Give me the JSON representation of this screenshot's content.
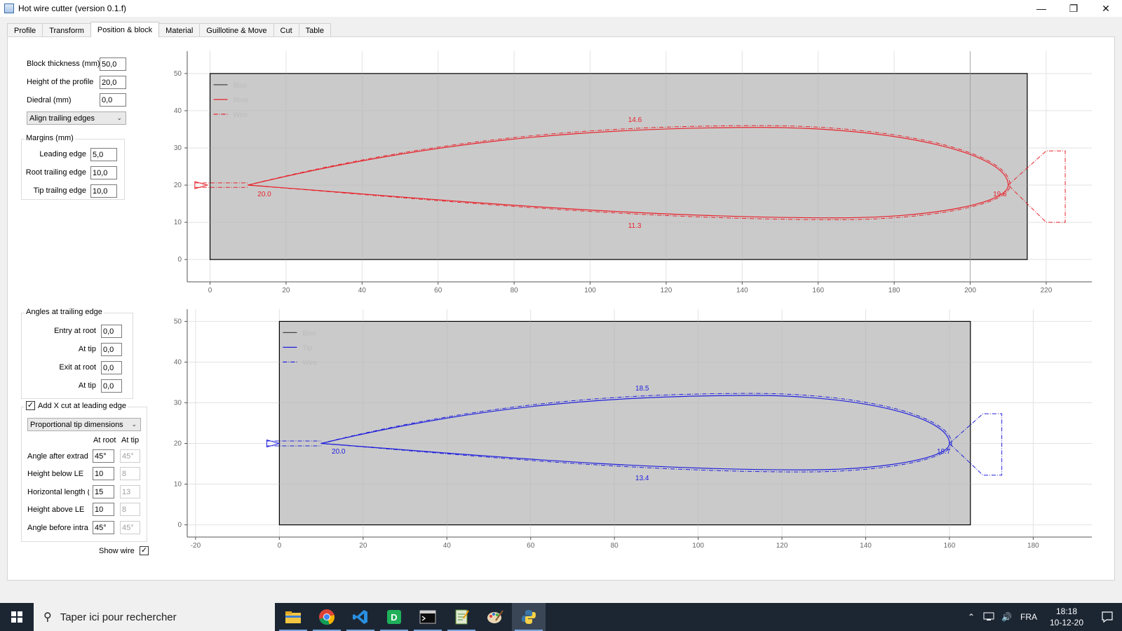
{
  "window": {
    "title": "Hot wire cutter (version 0.1.f)",
    "minimize": "—",
    "restore": "❐",
    "close": "✕"
  },
  "tabs": [
    "Profile",
    "Transform",
    "Position & block",
    "Material",
    "Guillotine & Move",
    "Cut",
    "Table"
  ],
  "active_tab": "Position & block",
  "block": {
    "thickness_label": "Block thickness (mm)",
    "thickness_value": "50,0",
    "height_label": "Height of the profile",
    "height_value": "20,0",
    "diedral_label": "Diedral (mm)",
    "diedral_value": "0,0",
    "align_option": "Align trailing edges"
  },
  "margins": {
    "title": "Margins (mm)",
    "leading_label": "Leading edge",
    "leading_value": "5,0",
    "root_te_label": "Root trailing edge",
    "root_te_value": "10,0",
    "tip_te_label": "Tip trailng edge",
    "tip_te_value": "10,0"
  },
  "angles": {
    "title": "Angles at trailing edge",
    "entry_root_label": "Entry at root",
    "entry_root_value": "0,0",
    "entry_tip_label": "At tip",
    "entry_tip_value": "0,0",
    "exit_root_label": "Exit at root",
    "exit_root_value": "0,0",
    "exit_tip_label": "At tip",
    "exit_tip_value": "0,0"
  },
  "xcut": {
    "checkbox_label": "Add X cut at leading edge",
    "checked": true,
    "mode_option": "Proportional tip dimensions",
    "col_root": "At root",
    "col_tip": "At tip",
    "rows": [
      {
        "label": "Angle after extrad",
        "root": "45°",
        "tip": "45°"
      },
      {
        "label": "Height below LE",
        "root": "10",
        "tip": "8"
      },
      {
        "label": "Horizontal length (",
        "root": "15",
        "tip": "13"
      },
      {
        "label": "Height above LE",
        "root": "10",
        "tip": "8"
      },
      {
        "label": "Angle before intra",
        "root": "45°",
        "tip": "45°"
      }
    ]
  },
  "show_wire_label": "Show wire",
  "show_wire_checked": true,
  "chart_data": [
    {
      "type": "line",
      "name": "root-chart",
      "xlim": [
        -6,
        232
      ],
      "ylim": [
        -6,
        56
      ],
      "xticks": [
        0,
        20,
        40,
        60,
        80,
        100,
        120,
        140,
        160,
        180,
        200,
        220
      ],
      "yticks": [
        0,
        10,
        20,
        30,
        40,
        50
      ],
      "grid": true,
      "legend_position": "top-left",
      "legend": [
        "Bloc",
        "Root",
        "Wire"
      ],
      "block": {
        "x0": 0,
        "x1": 215,
        "y0": 0,
        "y1": 50
      },
      "extra_vline_x": 200,
      "profile_color": "#e8232c",
      "profile": {
        "le_x": 10,
        "te_x": 210,
        "y_mid": 20,
        "upper_max": 35.5,
        "upper_max_x": 145,
        "lower_min": 11.2,
        "lower_min_x": 165
      },
      "annotations": [
        {
          "text": "14.6",
          "x": 110,
          "y": 37
        },
        {
          "text": "20.0",
          "x": 12.5,
          "y": 17
        },
        {
          "text": "11.3",
          "x": 110,
          "y": 8.5
        },
        {
          "text": "19.6",
          "x": 206,
          "y": 17
        }
      ],
      "lead_in": {
        "x0": -4,
        "x1": 10,
        "y": 20
      },
      "exit_wire": [
        [
          210,
          20
        ],
        [
          220,
          29.2
        ],
        [
          225,
          29.2
        ],
        [
          225,
          10
        ],
        [
          220,
          10
        ],
        [
          210,
          20
        ]
      ]
    },
    {
      "type": "line",
      "name": "tip-chart",
      "xlim": [
        -22,
        194
      ],
      "ylim": [
        -3,
        53
      ],
      "xticks": [
        -20,
        0,
        20,
        40,
        60,
        80,
        100,
        120,
        140,
        160,
        180
      ],
      "yticks": [
        0,
        10,
        20,
        30,
        40,
        50
      ],
      "grid": true,
      "legend_position": "top-left",
      "legend": [
        "Bloc",
        "Tip",
        "Wire"
      ],
      "block": {
        "x0": 0,
        "x1": 165,
        "y0": 0,
        "y1": 50
      },
      "profile_color": "#2020dd",
      "profile": {
        "le_x": 10,
        "te_x": 160,
        "y_mid": 20,
        "upper_max": 31.8,
        "upper_max_x": 113,
        "lower_min": 13.5,
        "lower_min_x": 125
      },
      "annotations": [
        {
          "text": "18.5",
          "x": 85,
          "y": 33
        },
        {
          "text": "20.0",
          "x": 12.5,
          "y": 17.5
        },
        {
          "text": "13.4",
          "x": 85,
          "y": 11
        },
        {
          "text": "19.7",
          "x": 157,
          "y": 17.5
        }
      ],
      "lead_in": {
        "x0": -3,
        "x1": 10,
        "y": 20
      },
      "exit_wire": [
        [
          160,
          20
        ],
        [
          168,
          27.3
        ],
        [
          172.5,
          27.3
        ],
        [
          172.5,
          12.2
        ],
        [
          168,
          12.2
        ],
        [
          160,
          20
        ]
      ]
    }
  ],
  "taskbar": {
    "search_placeholder": "Taper ici pour rechercher",
    "language": "FRA",
    "time": "18:18",
    "date": "10-12-20",
    "apps": [
      "file-explorer",
      "chrome",
      "vscode",
      "dbeaver",
      "terminal",
      "notepad",
      "paint",
      "python"
    ]
  }
}
